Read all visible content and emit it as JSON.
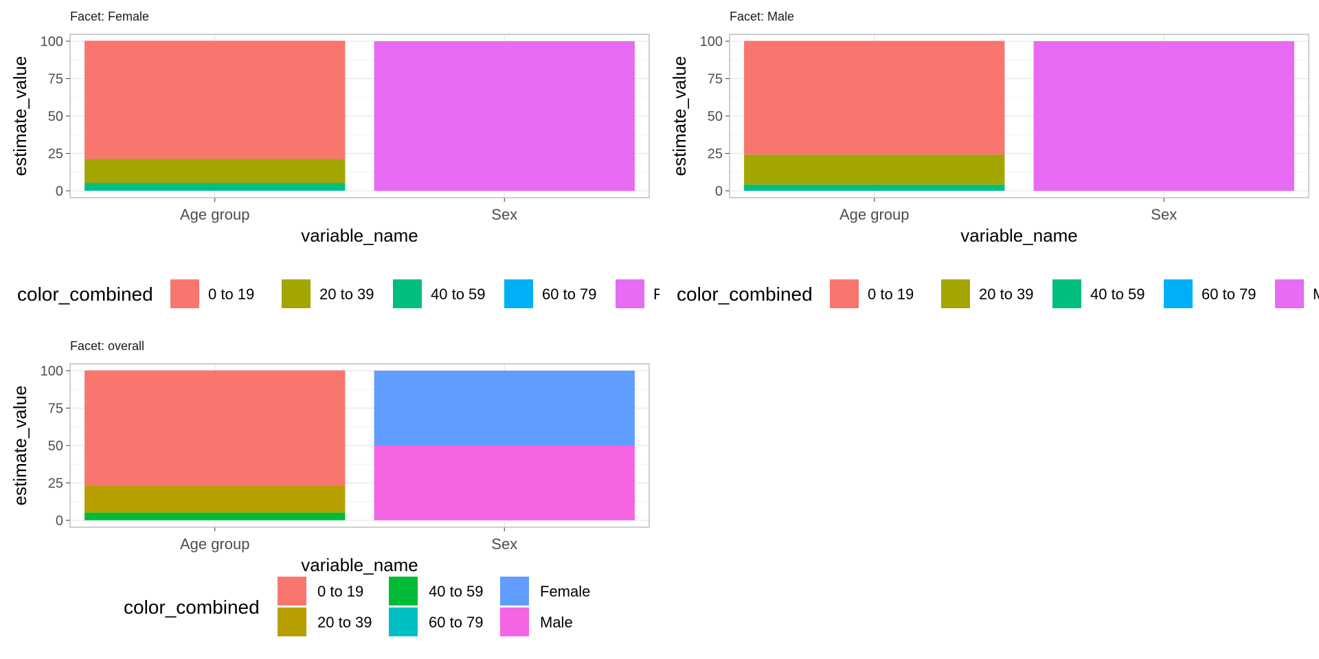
{
  "chart_data": [
    {
      "type": "bar",
      "facet_title": "Facet: Female",
      "xlabel": "variable_name",
      "ylabel": "estimate_value",
      "ylim": [
        0,
        100
      ],
      "y_ticks": [
        "0",
        "25",
        "50",
        "75",
        "100"
      ],
      "categories": [
        "Age group",
        "Sex"
      ],
      "stacked": true,
      "series": [
        {
          "name": "0 to 19",
          "color": "#F8766D",
          "values": [
            79,
            0
          ]
        },
        {
          "name": "20 to 39",
          "color": "#A3A500",
          "values": [
            16,
            0
          ]
        },
        {
          "name": "40 to 59",
          "color": "#00BF7D",
          "values": [
            5,
            0
          ]
        },
        {
          "name": "60 to 79",
          "color": "#00B0F6",
          "values": [
            0.3,
            0
          ]
        },
        {
          "name": "Female",
          "color": "#E76BF3",
          "values": [
            0,
            100
          ]
        }
      ],
      "legend": {
        "title": "color_combined",
        "position": "bottom",
        "items": [
          {
            "label": "0 to 19",
            "color": "#F8766D"
          },
          {
            "label": "20 to 39",
            "color": "#A3A500"
          },
          {
            "label": "40 to 59",
            "color": "#00BF7D"
          },
          {
            "label": "60 to 79",
            "color": "#00B0F6"
          },
          {
            "label": "Female",
            "color": "#E76BF3"
          }
        ]
      }
    },
    {
      "type": "bar",
      "facet_title": "Facet: Male",
      "xlabel": "variable_name",
      "ylabel": "estimate_value",
      "ylim": [
        0,
        100
      ],
      "y_ticks": [
        "0",
        "25",
        "50",
        "75",
        "100"
      ],
      "categories": [
        "Age group",
        "Sex"
      ],
      "stacked": true,
      "series": [
        {
          "name": "0 to 19",
          "color": "#F8766D",
          "values": [
            76,
            0
          ]
        },
        {
          "name": "20 to 39",
          "color": "#A3A500",
          "values": [
            20,
            0
          ]
        },
        {
          "name": "40 to 59",
          "color": "#00BF7D",
          "values": [
            4,
            0
          ]
        },
        {
          "name": "60 to 79",
          "color": "#00B0F6",
          "values": [
            0.2,
            0
          ]
        },
        {
          "name": "Male",
          "color": "#E76BF3",
          "values": [
            0,
            100
          ]
        }
      ],
      "legend": {
        "title": "color_combined",
        "position": "bottom",
        "items": [
          {
            "label": "0 to 19",
            "color": "#F8766D"
          },
          {
            "label": "20 to 39",
            "color": "#A3A500"
          },
          {
            "label": "40 to 59",
            "color": "#00BF7D"
          },
          {
            "label": "60 to 79",
            "color": "#00B0F6"
          },
          {
            "label": "Male",
            "color": "#E76BF3"
          }
        ]
      }
    },
    {
      "type": "bar",
      "facet_title": "Facet: overall",
      "xlabel": "variable_name",
      "ylabel": "estimate_value",
      "ylim": [
        0,
        100
      ],
      "y_ticks": [
        "0",
        "25",
        "50",
        "75",
        "100"
      ],
      "categories": [
        "Age group",
        "Sex"
      ],
      "stacked": true,
      "series": [
        {
          "name": "0 to 19",
          "color": "#F8766D",
          "values": [
            77,
            0
          ]
        },
        {
          "name": "20 to 39",
          "color": "#B79F00",
          "values": [
            18,
            0
          ]
        },
        {
          "name": "40 to 59",
          "color": "#00BA38",
          "values": [
            5,
            0
          ]
        },
        {
          "name": "60 to 79",
          "color": "#00BFC4",
          "values": [
            0.2,
            0
          ]
        },
        {
          "name": "Female",
          "color": "#619CFF",
          "values": [
            0,
            50
          ]
        },
        {
          "name": "Male",
          "color": "#F564E3",
          "values": [
            0,
            50
          ]
        }
      ],
      "legend": {
        "title": "color_combined",
        "position": "bottom",
        "items": [
          {
            "label": "0 to 19",
            "color": "#F8766D"
          },
          {
            "label": "20 to 39",
            "color": "#B79F00"
          },
          {
            "label": "40 to 59",
            "color": "#00BA38"
          },
          {
            "label": "60 to 79",
            "color": "#00BFC4"
          },
          {
            "label": "Female",
            "color": "#619CFF"
          },
          {
            "label": "Male",
            "color": "#F564E3"
          }
        ]
      }
    }
  ]
}
